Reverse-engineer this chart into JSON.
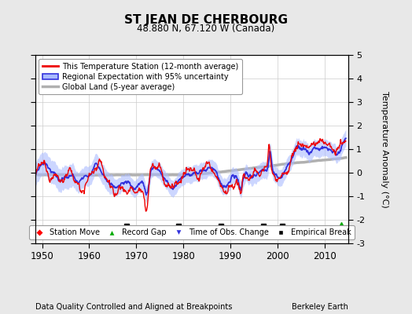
{
  "title": "ST JEAN DE CHERBOURG",
  "subtitle": "48.880 N, 67.120 W (Canada)",
  "xlabel_left": "Data Quality Controlled and Aligned at Breakpoints",
  "xlabel_right": "Berkeley Earth",
  "ylabel_right": "Temperature Anomaly (°C)",
  "xmin": 1948.5,
  "xmax": 2015,
  "ymin": -3,
  "ymax": 5,
  "yticks": [
    -3,
    -2,
    -1,
    0,
    1,
    2,
    3,
    4,
    5
  ],
  "xticks": [
    1950,
    1960,
    1970,
    1980,
    1990,
    2000,
    2010
  ],
  "background_color": "#e8e8e8",
  "plot_bg_color": "#ffffff",
  "red_line_color": "#ee0000",
  "blue_line_color": "#3333dd",
  "blue_fill_color": "#aabbff",
  "gray_line_color": "#b0b0b0",
  "grid_color": "#cccccc",
  "empirical_breaks": [
    1968,
    1979,
    1988,
    1997,
    2001
  ],
  "record_gap_x": 2013.5,
  "legend_entries": [
    "This Temperature Station (12-month average)",
    "Regional Expectation with 95% uncertainty",
    "Global Land (5-year average)"
  ],
  "marker_legend": [
    "Station Move",
    "Record Gap",
    "Time of Obs. Change",
    "Empirical Break"
  ]
}
